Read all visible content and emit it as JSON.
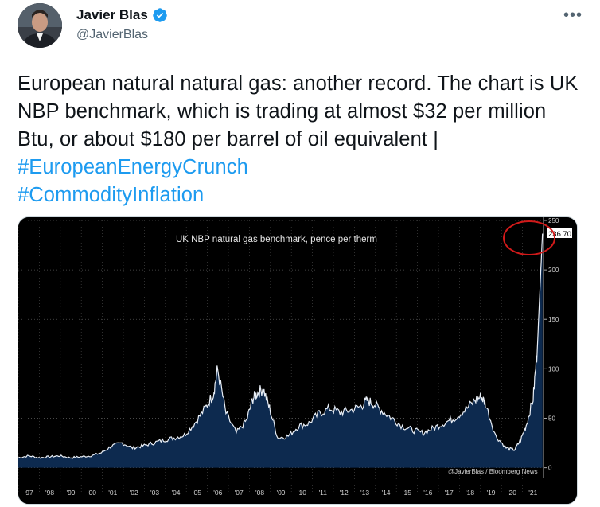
{
  "author": {
    "name": "Javier Blas",
    "handle": "@JavierBlas",
    "verified": true
  },
  "more_menu": "•••",
  "tweet": {
    "text": "European natural natural gas: another record. The chart is UK NBP benchmark, which is trading at almost $32 per million Btu, or about $180 per barrel of oil equivalent |",
    "hashtags": [
      "#EuropeanEnergyCrunch",
      "#CommodityInflation"
    ]
  },
  "colors": {
    "link": "#1d9bf0",
    "chart_bg": "#000000",
    "area_fill": "#0d2a4f",
    "line": "#e8eef6",
    "circle": "#d11a1a"
  },
  "chart_data": {
    "type": "area",
    "title": "UK NBP natural gas benchmark, pence per therm",
    "source": "@JavierBlas / Bloomberg News",
    "last_value_label": "236.70",
    "y_ticks": [
      0,
      50,
      100,
      150,
      200,
      250
    ],
    "ylim": [
      -10,
      250
    ],
    "x_tick_labels": [
      "'97",
      "'98",
      "'99",
      "'00",
      "'01",
      "'02",
      "'03",
      "'04",
      "'05",
      "'06",
      "'07",
      "'08",
      "'09",
      "'10",
      "'11",
      "'12",
      "'13",
      "'14",
      "'15",
      "'16",
      "'17",
      "'18",
      "'19",
      "'20",
      "'21"
    ],
    "x": [
      1996.5,
      1997,
      1997.5,
      1998,
      1998.5,
      1999,
      1999.5,
      2000,
      2000.5,
      2001,
      2001.5,
      2002,
      2002.5,
      2003,
      2003.5,
      2004,
      2004.5,
      2005,
      2005.5,
      2005.9,
      2006.1,
      2006.5,
      2007,
      2007.5,
      2007.8,
      2008,
      2008.3,
      2008.6,
      2009,
      2009.5,
      2010,
      2010.5,
      2011,
      2011.5,
      2012,
      2012.5,
      2013,
      2013.3,
      2013.6,
      2014,
      2014.5,
      2015,
      2015.5,
      2016,
      2016.5,
      2017,
      2017.5,
      2018,
      2018.5,
      2018.8,
      2019,
      2019.5,
      2020,
      2020.4,
      2020.7,
      2021,
      2021.3,
      2021.5,
      2021.65,
      2021.75
    ],
    "values": [
      10,
      12,
      10,
      11,
      12,
      10,
      11,
      12,
      15,
      22,
      25,
      20,
      22,
      25,
      28,
      30,
      33,
      45,
      60,
      75,
      100,
      55,
      35,
      48,
      70,
      75,
      80,
      60,
      30,
      32,
      42,
      45,
      55,
      60,
      56,
      58,
      62,
      68,
      65,
      58,
      50,
      42,
      38,
      35,
      40,
      45,
      50,
      58,
      68,
      72,
      65,
      32,
      20,
      18,
      28,
      45,
      70,
      120,
      190,
      236.7
    ],
    "annotations": [
      {
        "type": "circle",
        "target": "236.70 peak"
      }
    ]
  }
}
